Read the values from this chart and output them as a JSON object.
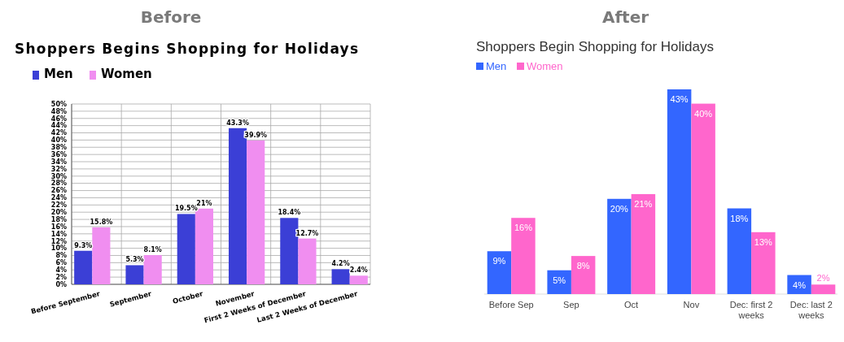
{
  "chart_data": [
    {
      "type": "bar",
      "title": "Before",
      "subtitle": "Shoppers Begins Shopping for Holidays",
      "categories": [
        "Before September",
        "September",
        "October",
        "November",
        "First 2 Weeks of December",
        "Last 2 Weeks of December"
      ],
      "series": [
        {
          "name": "Men",
          "color": "#3b3fd6",
          "values": [
            9.3,
            5.3,
            19.5,
            43.3,
            18.4,
            4.2
          ],
          "value_labels": [
            "9.3%",
            "5.3%",
            "19.5%",
            "43.3%",
            "18.4%",
            "4.2%"
          ]
        },
        {
          "name": "Women",
          "color": "#f08ef0",
          "values": [
            15.8,
            8.1,
            21,
            39.9,
            12.7,
            2.4
          ],
          "value_labels": [
            "15.8%",
            "8.1%",
            "21%",
            "39.9%",
            "12.7%",
            "2.4%"
          ]
        }
      ],
      "ylim": [
        0,
        50
      ],
      "yticks": [
        {
          "value": 0,
          "label": "0%"
        },
        {
          "value": 2,
          "label": "2%"
        },
        {
          "value": 4,
          "label": "4%"
        },
        {
          "value": 6,
          "label": "6%"
        },
        {
          "value": 8,
          "label": "8%"
        },
        {
          "value": 10,
          "label": "10%"
        },
        {
          "value": 12,
          "label": "12%"
        },
        {
          "value": 14,
          "label": "14%"
        },
        {
          "value": 16,
          "label": "16%"
        },
        {
          "value": 18,
          "label": "18%"
        },
        {
          "value": 20,
          "label": "20%"
        },
        {
          "value": 22,
          "label": "22%"
        },
        {
          "value": 24,
          "label": "24%"
        },
        {
          "value": 26,
          "label": "26%"
        },
        {
          "value": 28,
          "label": "28%"
        },
        {
          "value": 30,
          "label": "30%"
        },
        {
          "value": 32,
          "label": "32%"
        },
        {
          "value": 34,
          "label": "34%"
        },
        {
          "value": 36,
          "label": "36%"
        },
        {
          "value": 38,
          "label": "38%"
        },
        {
          "value": 40,
          "label": "40%"
        },
        {
          "value": 42,
          "label": "42%"
        },
        {
          "value": 44,
          "label": "44%"
        },
        {
          "value": 46,
          "label": "46%"
        },
        {
          "value": 48,
          "label": "48%"
        },
        {
          "value": 50,
          "label": "50%"
        }
      ],
      "grid": true,
      "legend": "top left"
    },
    {
      "type": "bar",
      "title": "After",
      "subtitle": "Shoppers Begin Shopping for Holidays",
      "categories": [
        "Before Sep",
        "Sep",
        "Oct",
        "Nov",
        "Dec: first 2 weeks",
        "Dec: last 2 weeks"
      ],
      "series": [
        {
          "name": "Men",
          "color": "#3366ff",
          "values": [
            9,
            5,
            20,
            43,
            18,
            4
          ],
          "value_labels": [
            "9%",
            "5%",
            "20%",
            "43%",
            "18%",
            "4%"
          ]
        },
        {
          "name": "Women",
          "color": "#ff66cc",
          "values": [
            16,
            8,
            21,
            40,
            13,
            2
          ],
          "value_labels": [
            "16%",
            "8%",
            "21%",
            "40%",
            "13%",
            "2%"
          ]
        }
      ],
      "tick_labels": "x",
      "legend": "top left"
    }
  ]
}
